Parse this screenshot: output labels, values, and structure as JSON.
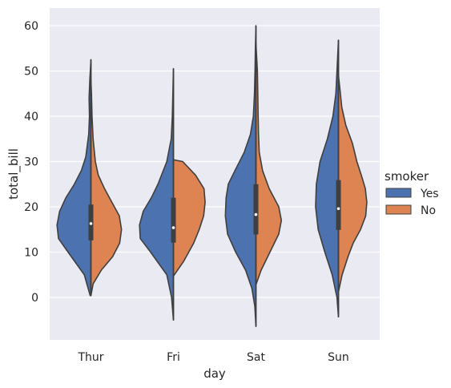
{
  "chart_data": {
    "type": "violin",
    "split": true,
    "xlabel": "day",
    "ylabel": "total_bill",
    "categories": [
      "Thur",
      "Fri",
      "Sat",
      "Sun"
    ],
    "yticks": [
      0,
      10,
      20,
      30,
      40,
      50,
      60
    ],
    "ylim": [
      -9.7,
      63.3
    ],
    "grid": true,
    "legend": {
      "title": "smoker",
      "position": "right",
      "entries": [
        {
          "label": "Yes",
          "color": "#4c72b0"
        },
        {
          "label": "No",
          "color": "#dd8452"
        }
      ]
    },
    "series": [
      {
        "name": "Yes",
        "color": "#4c72b0",
        "profiles": [
          [
            [
              0.4,
              0.02
            ],
            [
              5,
              0.18
            ],
            [
              10,
              0.62
            ],
            [
              13,
              0.88
            ],
            [
              16,
              0.92
            ],
            [
              19,
              0.85
            ],
            [
              22,
              0.68
            ],
            [
              25,
              0.45
            ],
            [
              28,
              0.26
            ],
            [
              31,
              0.14
            ],
            [
              36,
              0.06
            ],
            [
              40,
              0.04
            ],
            [
              44,
              0.05
            ],
            [
              48,
              0.03
            ],
            [
              52.5,
              0.0
            ]
          ],
          [
            [
              -5,
              0.0
            ],
            [
              0,
              0.05
            ],
            [
              5,
              0.18
            ],
            [
              10,
              0.62
            ],
            [
              13,
              0.9
            ],
            [
              16,
              0.92
            ],
            [
              19,
              0.82
            ],
            [
              22,
              0.6
            ],
            [
              25,
              0.42
            ],
            [
              30,
              0.18
            ],
            [
              35,
              0.06
            ],
            [
              40,
              0.03
            ],
            [
              45,
              0.015
            ],
            [
              50.5,
              0.0
            ]
          ],
          [
            [
              -6.4,
              0.0
            ],
            [
              -2,
              0.03
            ],
            [
              2,
              0.11
            ],
            [
              6,
              0.28
            ],
            [
              10,
              0.55
            ],
            [
              14,
              0.77
            ],
            [
              18,
              0.83
            ],
            [
              22,
              0.81
            ],
            [
              25,
              0.75
            ],
            [
              28,
              0.57
            ],
            [
              32,
              0.32
            ],
            [
              36,
              0.15
            ],
            [
              40,
              0.07
            ],
            [
              45,
              0.04
            ],
            [
              50,
              0.025
            ],
            [
              55,
              0.015
            ],
            [
              60,
              0.0
            ]
          ],
          [
            [
              -4.3,
              0.0
            ],
            [
              0,
              0.04
            ],
            [
              5,
              0.17
            ],
            [
              10,
              0.37
            ],
            [
              15,
              0.55
            ],
            [
              20,
              0.62
            ],
            [
              25,
              0.6
            ],
            [
              30,
              0.5
            ],
            [
              35,
              0.3
            ],
            [
              40,
              0.15
            ],
            [
              45,
              0.07
            ],
            [
              50,
              0.04
            ],
            [
              56.8,
              0.0
            ]
          ]
        ]
      },
      {
        "name": "No",
        "color": "#dd8452",
        "profiles": [
          [
            [
              0.4,
              0.0
            ],
            [
              3,
              0.06
            ],
            [
              6,
              0.28
            ],
            [
              9,
              0.59
            ],
            [
              12,
              0.78
            ],
            [
              15,
              0.83
            ],
            [
              18,
              0.77
            ],
            [
              21,
              0.57
            ],
            [
              24,
              0.37
            ],
            [
              27,
              0.2
            ],
            [
              30,
              0.12
            ],
            [
              35,
              0.06
            ],
            [
              40,
              0.03
            ],
            [
              45,
              0.015
            ],
            [
              48,
              0.0
            ]
          ],
          [
            [
              4.7,
              0.0
            ],
            [
              8,
              0.28
            ],
            [
              12,
              0.55
            ],
            [
              15,
              0.7
            ],
            [
              18,
              0.82
            ],
            [
              21,
              0.86
            ],
            [
              24,
              0.83
            ],
            [
              27,
              0.6
            ],
            [
              30,
              0.25
            ],
            [
              30.4,
              0.0
            ]
          ],
          [
            [
              2.8,
              0.0
            ],
            [
              6,
              0.14
            ],
            [
              10,
              0.38
            ],
            [
              14,
              0.62
            ],
            [
              17,
              0.69
            ],
            [
              20,
              0.62
            ],
            [
              24,
              0.36
            ],
            [
              28,
              0.18
            ],
            [
              32,
              0.09
            ],
            [
              36,
              0.07
            ],
            [
              40,
              0.06
            ],
            [
              45,
              0.05
            ],
            [
              50,
              0.04
            ],
            [
              56,
              0.0
            ]
          ],
          [
            [
              1.2,
              0.0
            ],
            [
              5,
              0.1
            ],
            [
              9,
              0.26
            ],
            [
              12,
              0.4
            ],
            [
              15,
              0.6
            ],
            [
              18,
              0.74
            ],
            [
              21,
              0.77
            ],
            [
              24,
              0.73
            ],
            [
              27,
              0.62
            ],
            [
              30,
              0.5
            ],
            [
              34,
              0.38
            ],
            [
              38,
              0.2
            ],
            [
              42,
              0.09
            ],
            [
              46,
              0.04
            ],
            [
              49,
              0.0
            ]
          ]
        ]
      }
    ],
    "box_stats": [
      {
        "day": "Thur",
        "min": 0.4,
        "q1": 12.6,
        "median": 16.3,
        "q3": 20.5,
        "max": 52.5
      },
      {
        "day": "Fri",
        "min": -5.0,
        "q1": 12.1,
        "median": 15.4,
        "q3": 22.0,
        "max": 50.5
      },
      {
        "day": "Sat",
        "min": -6.4,
        "q1": 13.9,
        "median": 18.3,
        "q3": 25.0,
        "max": 60.0
      },
      {
        "day": "Sun",
        "min": -4.3,
        "q1": 14.9,
        "median": 19.6,
        "q3": 25.9,
        "max": 56.8
      }
    ]
  }
}
